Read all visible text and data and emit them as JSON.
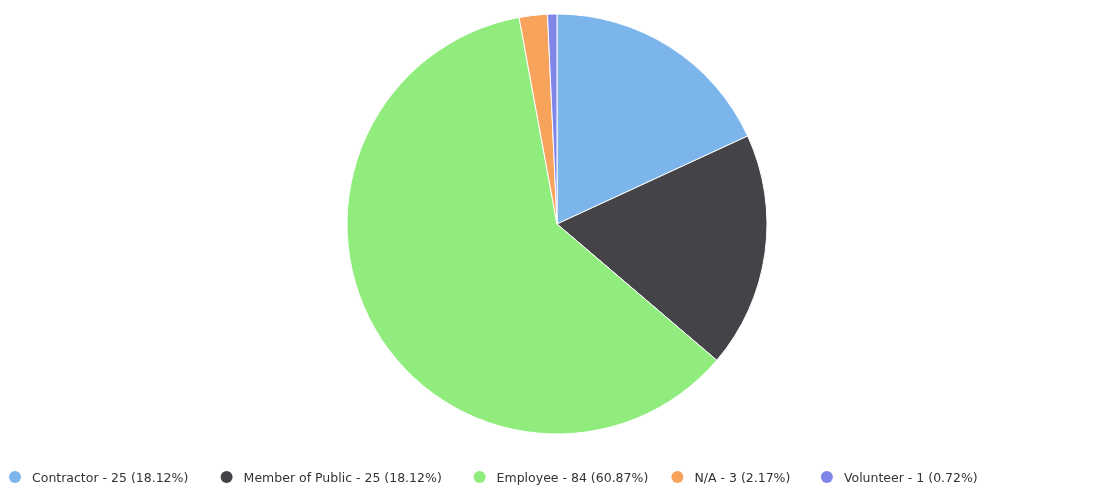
{
  "chart_data": {
    "type": "pie",
    "categories": [
      "Contractor - 25 (18.12%)",
      "Member of Public - 25 (18.12%)",
      "Employee - 84 (60.87%)",
      "N/A - 3 (2.17%)",
      "Volunteer - 1 (0.72%)"
    ],
    "values": [
      18.12,
      18.12,
      60.87,
      2.17,
      0.72
    ],
    "colors": [
      "#7cb5ec",
      "#434348",
      "#90ed7d",
      "#f7a35c",
      "#8085e9"
    ],
    "legend": "bottom"
  }
}
